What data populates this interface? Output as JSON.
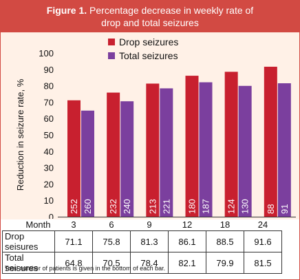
{
  "header": {
    "figure_label": "Figure 1.",
    "title_line1": "Percentage decrease in weekly rate of",
    "title_line2": "drop and total seizures"
  },
  "chart_data": {
    "type": "bar",
    "ylabel": "Reduction in seizure rate, %",
    "ylim": [
      0,
      100
    ],
    "yticks": [
      "0",
      "10",
      "20",
      "30",
      "40",
      "50",
      "60",
      "70",
      "80",
      "90",
      "100"
    ],
    "categories": [
      "3",
      "6",
      "9",
      "12",
      "18",
      "24"
    ],
    "legend_position": "top-right",
    "series": [
      {
        "name": "Drop seizures",
        "color": "#c8202f",
        "values": [
          71.1,
          75.8,
          81.3,
          86.1,
          88.5,
          91.6
        ],
        "bar_labels": [
          "252",
          "232",
          "213",
          "180",
          "124",
          "88"
        ]
      },
      {
        "name": "Total seizures",
        "color": "#7b3f9e",
        "values": [
          64.8,
          70.5,
          78.4,
          82.1,
          79.9,
          81.5
        ],
        "bar_labels": [
          "260",
          "240",
          "221",
          "187",
          "130",
          "91"
        ]
      }
    ]
  },
  "table": {
    "month_label": "Month",
    "drop_label": "Drop seisures",
    "total_label": "Total seisures",
    "months": [
      "3",
      "6",
      "9",
      "12",
      "18",
      "24"
    ],
    "drop_values": [
      "71.1",
      "75.8",
      "81.3",
      "86.1",
      "88.5",
      "91.6"
    ],
    "total_values": [
      "64.8",
      "70.5",
      "78.4",
      "82.1",
      "79.9",
      "81.5"
    ]
  },
  "footnote": "Total number of patients is given in the bottom of each bar."
}
